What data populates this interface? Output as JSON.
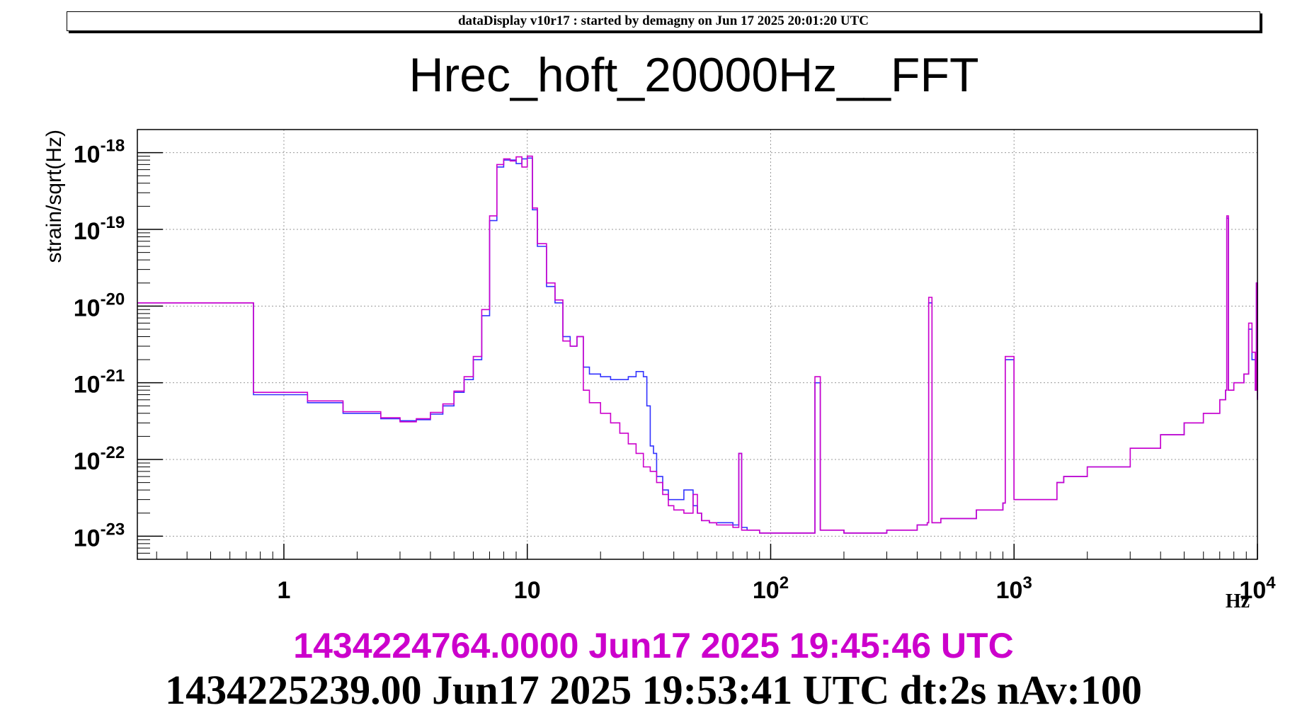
{
  "header": {
    "text": "dataDisplay v10r17 : started by demagny on Jun 17 2025 20:01:20 UTC"
  },
  "colors": {
    "reference": "#cc00cc",
    "current": "#3333ff",
    "grid": "#9a9a9a",
    "frame": "#000000"
  },
  "footer": {
    "reference_stamp": "1434224764.0000 Jun17 2025 19:45:46 UTC",
    "current_stamp": "1434225239.00 Jun17 2025 19:53:41 UTC dt:2s nAv:100"
  },
  "chart_data": {
    "type": "line",
    "title": "Hrec_hoft_20000Hz__FFT",
    "xlabel": "Hz",
    "ylabel": "strain/sqrt(Hz)",
    "x_scale": "log",
    "y_scale": "log",
    "xlim": [
      0.25,
      10000
    ],
    "ylim": [
      5e-24,
      2e-18
    ],
    "grid": true,
    "x_ticks": [
      {
        "value": 1,
        "base": "1",
        "exp": ""
      },
      {
        "value": 10,
        "base": "10",
        "exp": ""
      },
      {
        "value": 100,
        "base": "10",
        "exp": "2"
      },
      {
        "value": 1000,
        "base": "10",
        "exp": "3"
      },
      {
        "value": 10000,
        "base": "10",
        "exp": "4"
      }
    ],
    "y_ticks": [
      {
        "value": 1e-18,
        "base": "10",
        "exp": "-18"
      },
      {
        "value": 1e-19,
        "base": "10",
        "exp": "-19"
      },
      {
        "value": 1e-20,
        "base": "10",
        "exp": "-20"
      },
      {
        "value": 1e-21,
        "base": "10",
        "exp": "-21"
      },
      {
        "value": 1e-22,
        "base": "10",
        "exp": "-22"
      },
      {
        "value": 1e-23,
        "base": "10",
        "exp": "-23"
      }
    ],
    "series": [
      {
        "name": "1434225239.00 Jun17 2025 19:53:41 UTC",
        "color": "#3333ff",
        "x": [
          0.25,
          0.75,
          1.25,
          1.75,
          2.5,
          3.0,
          3.5,
          4.0,
          4.5,
          5.0,
          5.5,
          6.0,
          6.5,
          7.0,
          7.5,
          8.0,
          8.5,
          9.0,
          9.5,
          10.0,
          10.5,
          11.0,
          12.0,
          13.0,
          14.0,
          15.0,
          16.0,
          17.0,
          18.0,
          20.0,
          22.0,
          24.0,
          26.0,
          28.0,
          30.0,
          31.0,
          32.0,
          33.0,
          34.0,
          36.0,
          38.0,
          40.0,
          44.0,
          48.0,
          50.0,
          52.0,
          56.0,
          60.0,
          70.0,
          74.0,
          76.0,
          80.0,
          90.0,
          100.0,
          120.0,
          150.0,
          152.0,
          160.0,
          200.0,
          250.0,
          300.0,
          400.0,
          440.0,
          446.0,
          460.0,
          500.0,
          700.0,
          900.0,
          920.0,
          1000.0,
          1500.0,
          1600.0,
          2000.0,
          3000.0,
          4000.0,
          5000.0,
          6000.0,
          7000.0,
          7400.0,
          7480.0,
          7600.0,
          8000.0,
          8800.0,
          9200.0,
          9500.0,
          9800.0,
          9900.0,
          10000.0
        ],
        "y": [
          1.1e-20,
          7e-22,
          5.5e-22,
          4e-22,
          3.4e-22,
          3.2e-22,
          3.3e-22,
          3.9e-22,
          5e-22,
          7.5e-22,
          1.1e-21,
          2e-21,
          7.5e-21,
          1.3e-19,
          6.5e-19,
          8e-19,
          8e-19,
          7.2e-19,
          8.3e-19,
          8.5e-19,
          1.8e-19,
          6e-20,
          1.8e-20,
          1.1e-20,
          4e-21,
          3e-21,
          4e-21,
          1.6e-21,
          1.3e-21,
          1.2e-21,
          1.1e-21,
          1.1e-21,
          1.2e-21,
          1.4e-21,
          1.2e-21,
          5e-22,
          1.5e-22,
          1.2e-22,
          6e-23,
          4e-23,
          3e-23,
          3e-23,
          4e-23,
          2.5e-23,
          2e-23,
          1.6e-23,
          1.5e-23,
          1.5e-23,
          1.4e-23,
          1.2e-22,
          1.3e-23,
          1.2e-23,
          1.1e-23,
          1.1e-23,
          1.1e-23,
          1.1e-23,
          1e-21,
          1.2e-23,
          1.1e-23,
          1.1e-23,
          1.2e-23,
          1.4e-23,
          1.5e-23,
          1.1e-20,
          1.5e-23,
          1.7e-23,
          2.2e-23,
          2.7e-23,
          2e-21,
          3e-23,
          5e-23,
          6e-23,
          8e-23,
          1.4e-22,
          2.1e-22,
          3e-22,
          4e-22,
          6e-22,
          8e-22,
          1.4e-19,
          8e-22,
          1e-21,
          1.3e-21,
          5e-21,
          2e-21,
          8e-22,
          2e-20,
          6e-22
        ]
      },
      {
        "name": "1434224764.0000 Jun17 2025 19:45:46 UTC",
        "color": "#cc00cc",
        "x": [
          0.25,
          0.75,
          1.25,
          1.75,
          2.5,
          3.0,
          3.5,
          4.0,
          4.5,
          5.0,
          5.5,
          6.0,
          6.5,
          7.0,
          7.5,
          8.0,
          8.5,
          9.0,
          9.5,
          10.0,
          10.5,
          11.0,
          12.0,
          13.0,
          14.0,
          15.0,
          16.0,
          17.0,
          18.0,
          20.0,
          22.0,
          24.0,
          26.0,
          28.0,
          30.0,
          32.0,
          34.0,
          36.0,
          38.0,
          40.0,
          44.0,
          48.0,
          50.0,
          52.0,
          56.0,
          60.0,
          70.0,
          74.0,
          76.0,
          80.0,
          90.0,
          100.0,
          120.0,
          150.0,
          152.0,
          160.0,
          200.0,
          250.0,
          300.0,
          400.0,
          440.0,
          446.0,
          460.0,
          500.0,
          700.0,
          900.0,
          920.0,
          1000.0,
          1500.0,
          1600.0,
          2000.0,
          3000.0,
          4000.0,
          5000.0,
          6000.0,
          7000.0,
          7400.0,
          7480.0,
          7600.0,
          8000.0,
          8800.0,
          9200.0,
          9500.0,
          9800.0,
          9900.0,
          10000.0
        ],
        "y": [
          1.1e-20,
          7.5e-22,
          5.8e-22,
          4.2e-22,
          3.5e-22,
          3.1e-22,
          3.4e-22,
          4.1e-22,
          5.3e-22,
          7.8e-22,
          1.2e-21,
          2.2e-21,
          9e-21,
          1.5e-19,
          7e-19,
          8.3e-19,
          7.8e-19,
          8.8e-19,
          6.5e-19,
          9e-19,
          1.9e-19,
          6.5e-20,
          2e-20,
          1.2e-20,
          3.5e-21,
          3e-21,
          4e-21,
          8e-22,
          5.5e-22,
          4e-22,
          3e-22,
          2.2e-22,
          1.6e-22,
          1.2e-22,
          8e-23,
          7e-23,
          5e-23,
          3.5e-23,
          2.5e-23,
          2.2e-23,
          2e-23,
          3.5e-23,
          2e-23,
          1.6e-23,
          1.5e-23,
          1.4e-23,
          1.3e-23,
          1.2e-22,
          1.2e-23,
          1.2e-23,
          1.1e-23,
          1.1e-23,
          1.1e-23,
          1.1e-23,
          1.2e-21,
          1.2e-23,
          1.1e-23,
          1.1e-23,
          1.2e-23,
          1.4e-23,
          1.5e-23,
          1.3e-20,
          1.5e-23,
          1.7e-23,
          2.2e-23,
          2.7e-23,
          2.2e-21,
          3e-23,
          5e-23,
          6e-23,
          8e-23,
          1.4e-22,
          2.1e-22,
          3e-22,
          4e-22,
          6e-22,
          8e-22,
          1.5e-19,
          8e-22,
          1e-21,
          1.3e-21,
          6e-21,
          2.5e-21,
          8e-22,
          2e-20,
          6e-22
        ]
      }
    ]
  }
}
